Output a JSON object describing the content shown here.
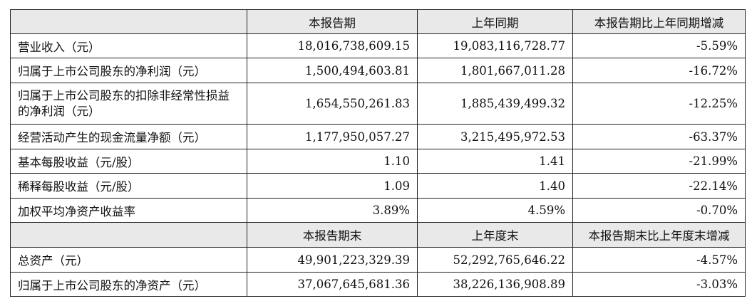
{
  "header1": [
    "",
    "本报告期",
    "上年同期",
    "本报告期比上年同期增减"
  ],
  "rows1": [
    {
      "label": "营业收入（元）",
      "cur": "18,016,738,609.15",
      "prev": "19,083,116,728.77",
      "chg": "-5.59%"
    },
    {
      "label": "归属于上市公司股东的净利润（元）",
      "cur": "1,500,494,603.81",
      "prev": "1,801,667,011.28",
      "chg": "-16.72%"
    },
    {
      "label": "归属于上市公司股东的扣除非经常性损益的净利润（元）",
      "cur": "1,654,550,261.83",
      "prev": "1,885,439,499.32",
      "chg": "-12.25%"
    },
    {
      "label": "经营活动产生的现金流量净额（元）",
      "cur": "1,177,950,057.27",
      "prev": "3,215,495,972.53",
      "chg": "-63.37%"
    },
    {
      "label": "基本每股收益（元/股）",
      "cur": "1.10",
      "prev": "1.41",
      "chg": "-21.99%"
    },
    {
      "label": "稀释每股收益（元/股）",
      "cur": "1.09",
      "prev": "1.40",
      "chg": "-22.14%"
    },
    {
      "label": "加权平均净资产收益率",
      "cur": "3.89%",
      "prev": "4.59%",
      "chg": "-0.70%"
    }
  ],
  "header2": [
    "",
    "本报告期末",
    "上年度末",
    "本报告期末比上年度末增减"
  ],
  "rows2": [
    {
      "label": "总资产（元）",
      "cur": "49,901,223,329.39",
      "prev": "52,292,765,646.22",
      "chg": "-4.57%"
    },
    {
      "label": "归属于上市公司股东的净资产（元）",
      "cur": "37,067,645,681.36",
      "prev": "38,226,136,908.89",
      "chg": "-3.03%"
    }
  ]
}
